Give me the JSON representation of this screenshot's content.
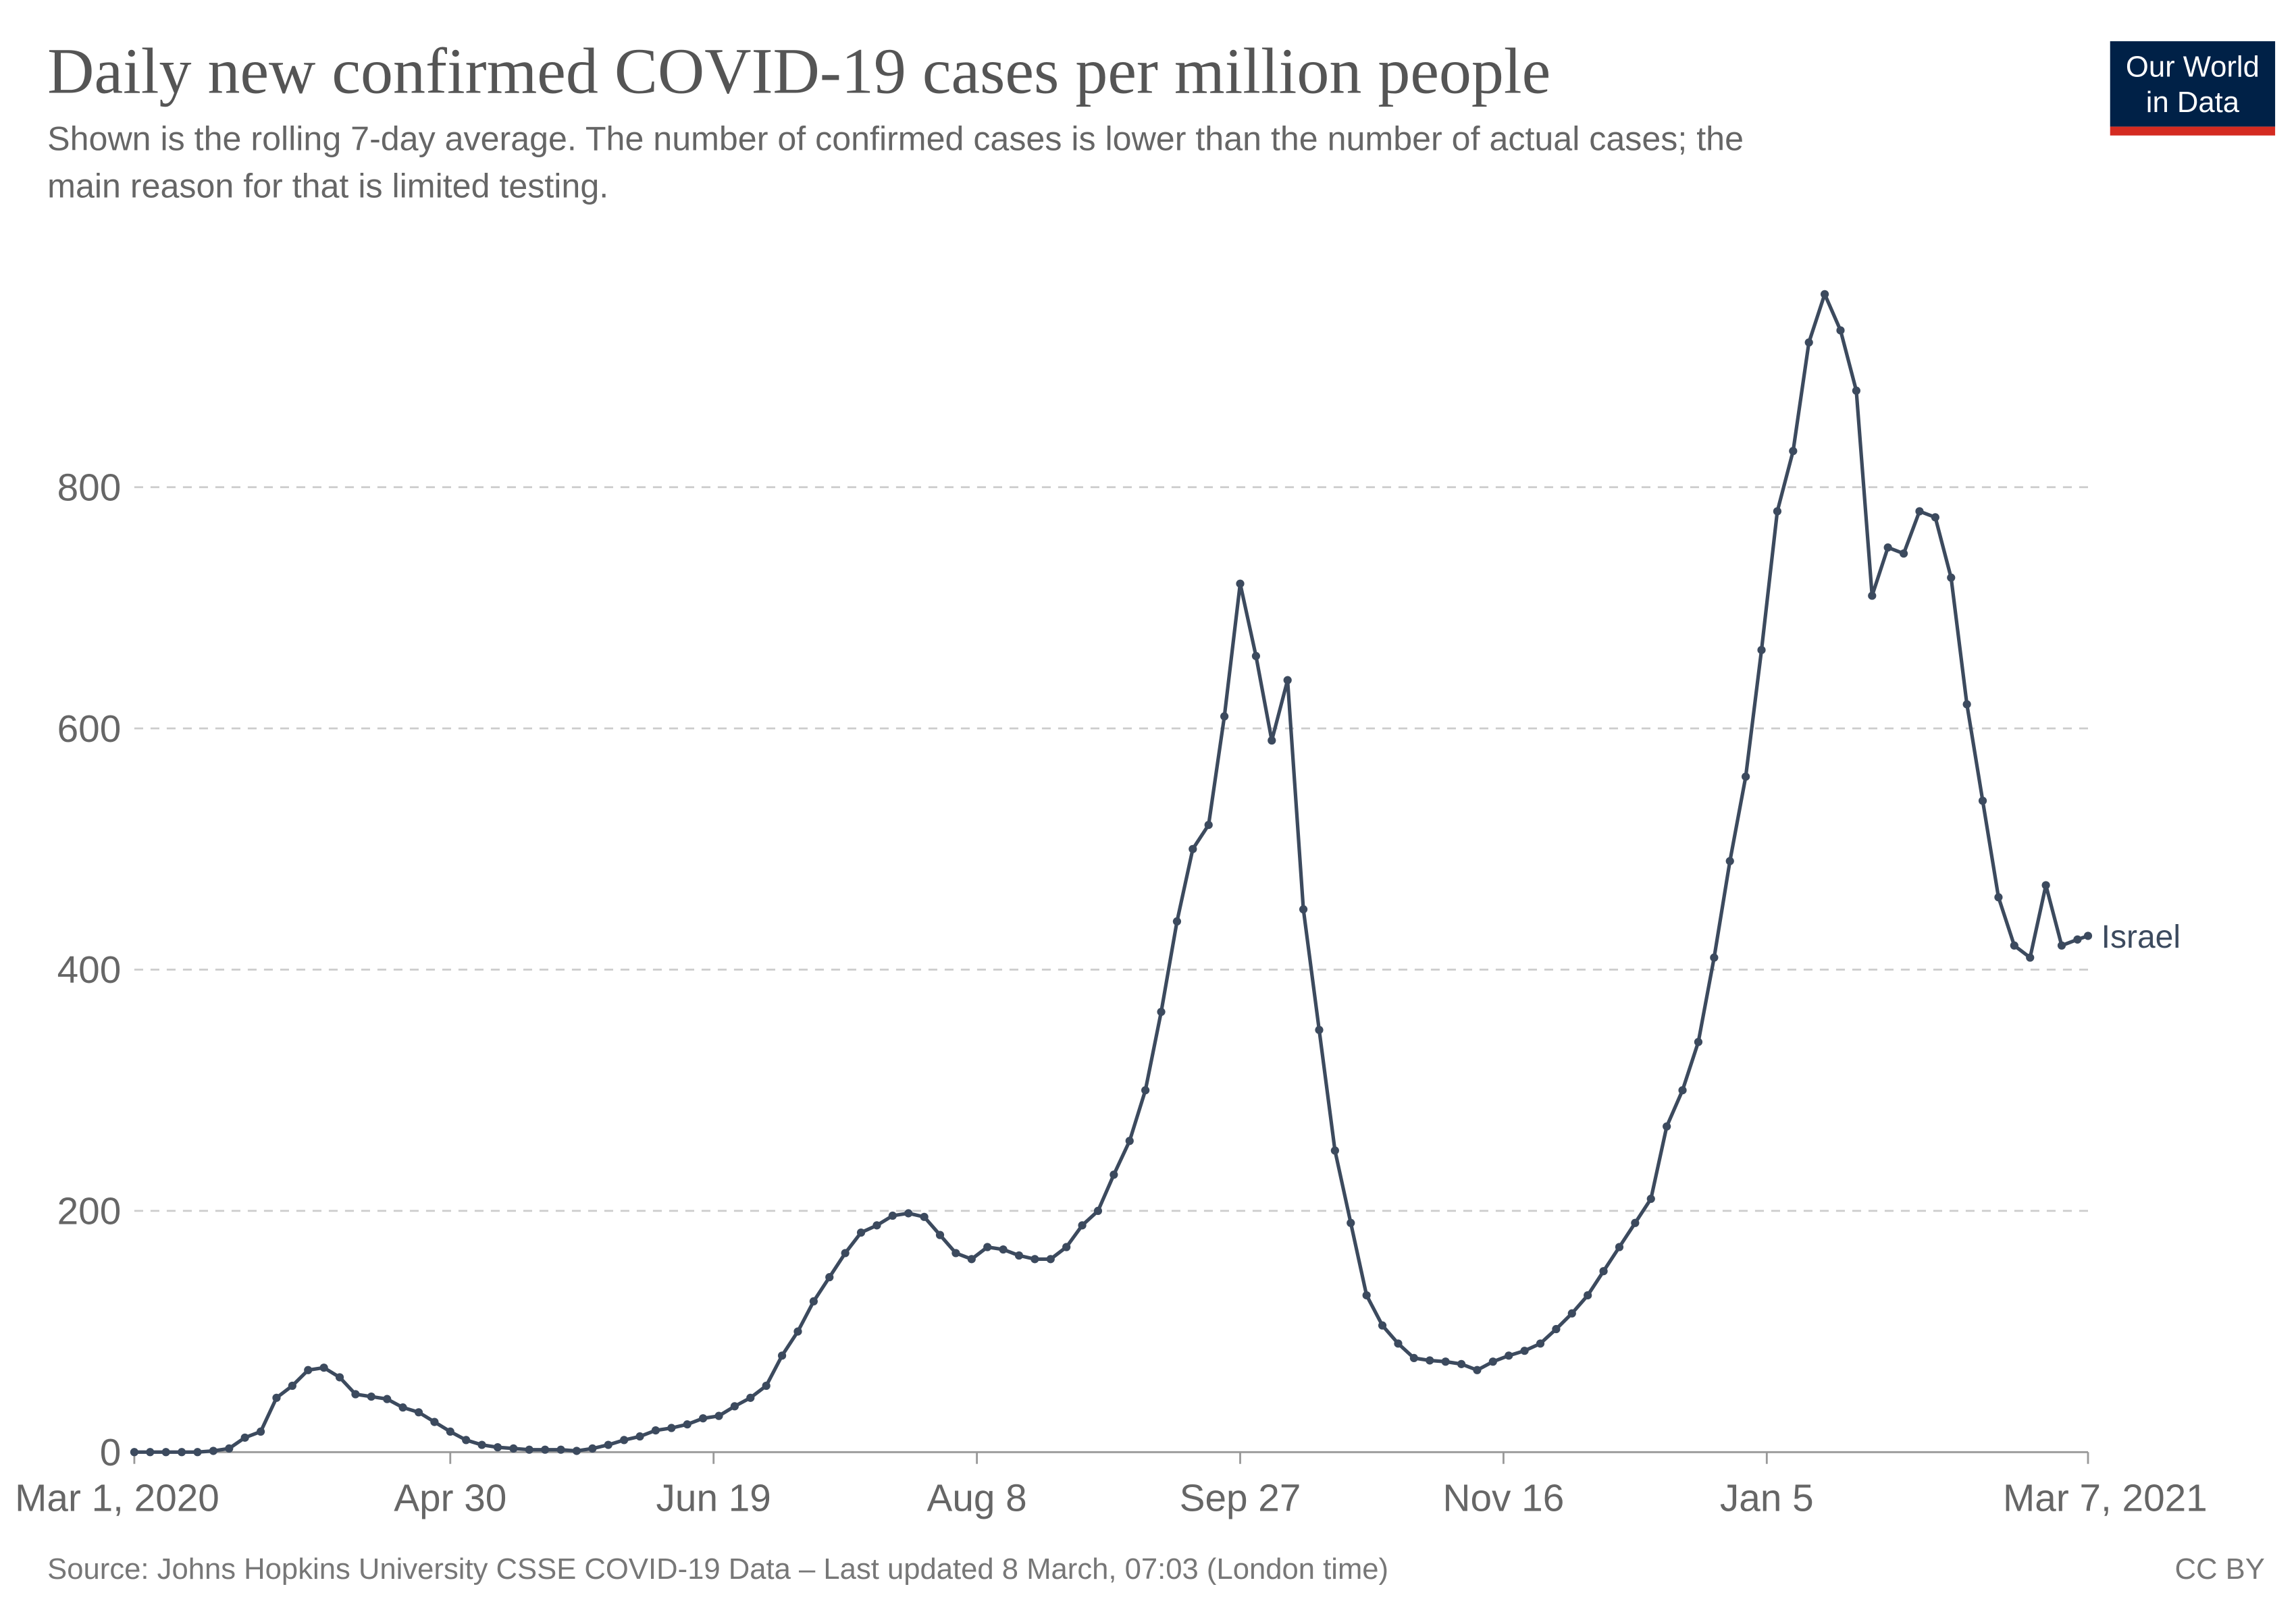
{
  "chart_data": {
    "type": "line",
    "title": "Daily new confirmed COVID-19 cases per million people",
    "subtitle": [
      "Shown is the rolling 7-day average. The number of confirmed cases is lower than the number of actual cases; the",
      "main reason for that is limited testing."
    ],
    "logo": [
      "Our World",
      "in Data"
    ],
    "source": "Source: Johns Hopkins University CSSE COVID-19 Data – Last updated 8 March, 07:03 (London time)",
    "license": "CC BY",
    "x": [
      "2020-03-01",
      "2020-03-04",
      "2020-03-07",
      "2020-03-10",
      "2020-03-13",
      "2020-03-16",
      "2020-03-19",
      "2020-03-22",
      "2020-03-25",
      "2020-03-28",
      "2020-03-31",
      "2020-04-03",
      "2020-04-06",
      "2020-04-09",
      "2020-04-12",
      "2020-04-15",
      "2020-04-18",
      "2020-04-21",
      "2020-04-24",
      "2020-04-27",
      "2020-04-30",
      "2020-05-03",
      "2020-05-06",
      "2020-05-09",
      "2020-05-12",
      "2020-05-15",
      "2020-05-18",
      "2020-05-21",
      "2020-05-24",
      "2020-05-27",
      "2020-05-30",
      "2020-06-02",
      "2020-06-05",
      "2020-06-08",
      "2020-06-11",
      "2020-06-14",
      "2020-06-17",
      "2020-06-20",
      "2020-06-23",
      "2020-06-26",
      "2020-06-29",
      "2020-07-02",
      "2020-07-05",
      "2020-07-08",
      "2020-07-11",
      "2020-07-14",
      "2020-07-17",
      "2020-07-20",
      "2020-07-23",
      "2020-07-26",
      "2020-07-29",
      "2020-08-01",
      "2020-08-04",
      "2020-08-07",
      "2020-08-10",
      "2020-08-13",
      "2020-08-16",
      "2020-08-19",
      "2020-08-22",
      "2020-08-25",
      "2020-08-28",
      "2020-08-31",
      "2020-09-03",
      "2020-09-06",
      "2020-09-09",
      "2020-09-12",
      "2020-09-15",
      "2020-09-18",
      "2020-09-21",
      "2020-09-24",
      "2020-09-27",
      "2020-09-30",
      "2020-10-03",
      "2020-10-06",
      "2020-10-09",
      "2020-10-12",
      "2020-10-15",
      "2020-10-18",
      "2020-10-21",
      "2020-10-24",
      "2020-10-27",
      "2020-10-30",
      "2020-11-02",
      "2020-11-05",
      "2020-11-08",
      "2020-11-11",
      "2020-11-14",
      "2020-11-17",
      "2020-11-20",
      "2020-11-23",
      "2020-11-26",
      "2020-11-29",
      "2020-12-02",
      "2020-12-05",
      "2020-12-08",
      "2020-12-11",
      "2020-12-14",
      "2020-12-17",
      "2020-12-20",
      "2020-12-23",
      "2020-12-26",
      "2020-12-29",
      "2021-01-01",
      "2021-01-04",
      "2021-01-07",
      "2021-01-10",
      "2021-01-13",
      "2021-01-16",
      "2021-01-19",
      "2021-01-22",
      "2021-01-25",
      "2021-01-28",
      "2021-01-31",
      "2021-02-03",
      "2021-02-06",
      "2021-02-09",
      "2021-02-12",
      "2021-02-15",
      "2021-02-18",
      "2021-02-21",
      "2021-02-24",
      "2021-02-27",
      "2021-03-02",
      "2021-03-05",
      "2021-03-07"
    ],
    "series": [
      {
        "name": "Israel",
        "color": "#3c4a5e",
        "values": [
          0,
          0,
          0,
          0,
          0,
          1,
          3,
          12,
          17,
          45,
          55,
          68,
          70,
          62,
          48,
          46,
          44,
          37,
          33,
          25,
          17,
          10,
          6,
          4,
          3,
          2,
          2,
          2,
          1,
          3,
          6,
          10,
          13,
          18,
          20,
          23,
          28,
          30,
          38,
          45,
          55,
          80,
          100,
          125,
          145,
          165,
          182,
          188,
          196,
          198,
          195,
          180,
          165,
          160,
          170,
          168,
          163,
          160,
          160,
          170,
          188,
          200,
          230,
          258,
          300,
          365,
          440,
          500,
          520,
          610,
          720,
          660,
          590,
          640,
          450,
          350,
          250,
          190,
          130,
          105,
          90,
          78,
          76,
          75,
          73,
          68,
          75,
          80,
          84,
          90,
          102,
          115,
          130,
          150,
          170,
          190,
          210,
          270,
          300,
          340,
          410,
          490,
          560,
          665,
          780,
          830,
          920,
          960,
          930,
          880,
          710,
          750,
          745,
          780,
          775,
          725,
          620,
          540,
          460,
          420,
          410,
          470,
          420,
          425,
          428
        ]
      }
    ],
    "xlim": [
      "2020-03-01",
      "2021-03-07"
    ],
    "xticks": [
      {
        "value": "2020-03-01",
        "label": "Mar 1, 2020"
      },
      {
        "value": "2020-04-30",
        "label": "Apr 30"
      },
      {
        "value": "2020-06-19",
        "label": "Jun 19"
      },
      {
        "value": "2020-08-08",
        "label": "Aug 8"
      },
      {
        "value": "2020-09-27",
        "label": "Sep 27"
      },
      {
        "value": "2020-11-16",
        "label": "Nov 16"
      },
      {
        "value": "2021-01-05",
        "label": "Jan 5"
      },
      {
        "value": "2021-03-07",
        "label": "Mar 7, 2021"
      }
    ],
    "ylim": [
      0,
      1000
    ],
    "yticks": [
      0,
      200,
      400,
      600,
      800
    ],
    "grid": true
  }
}
